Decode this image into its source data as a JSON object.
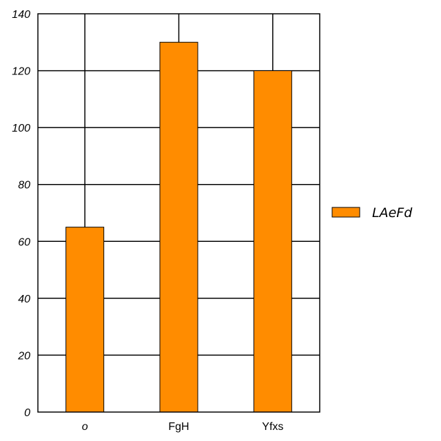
{
  "chart_data": {
    "type": "bar",
    "categories": [
      "o",
      "FgH",
      "Yfxs"
    ],
    "series": [
      {
        "name": "LAeFd",
        "values": [
          65,
          130,
          120
        ],
        "color": "#ff8c00"
      }
    ],
    "title": "",
    "xlabel": "",
    "ylabel": "",
    "ylim": [
      0,
      140
    ],
    "yticks": [
      0,
      20,
      40,
      60,
      80,
      100,
      120,
      140
    ],
    "grid": true,
    "legend_position": "right",
    "italic_categories": [
      "o"
    ]
  }
}
